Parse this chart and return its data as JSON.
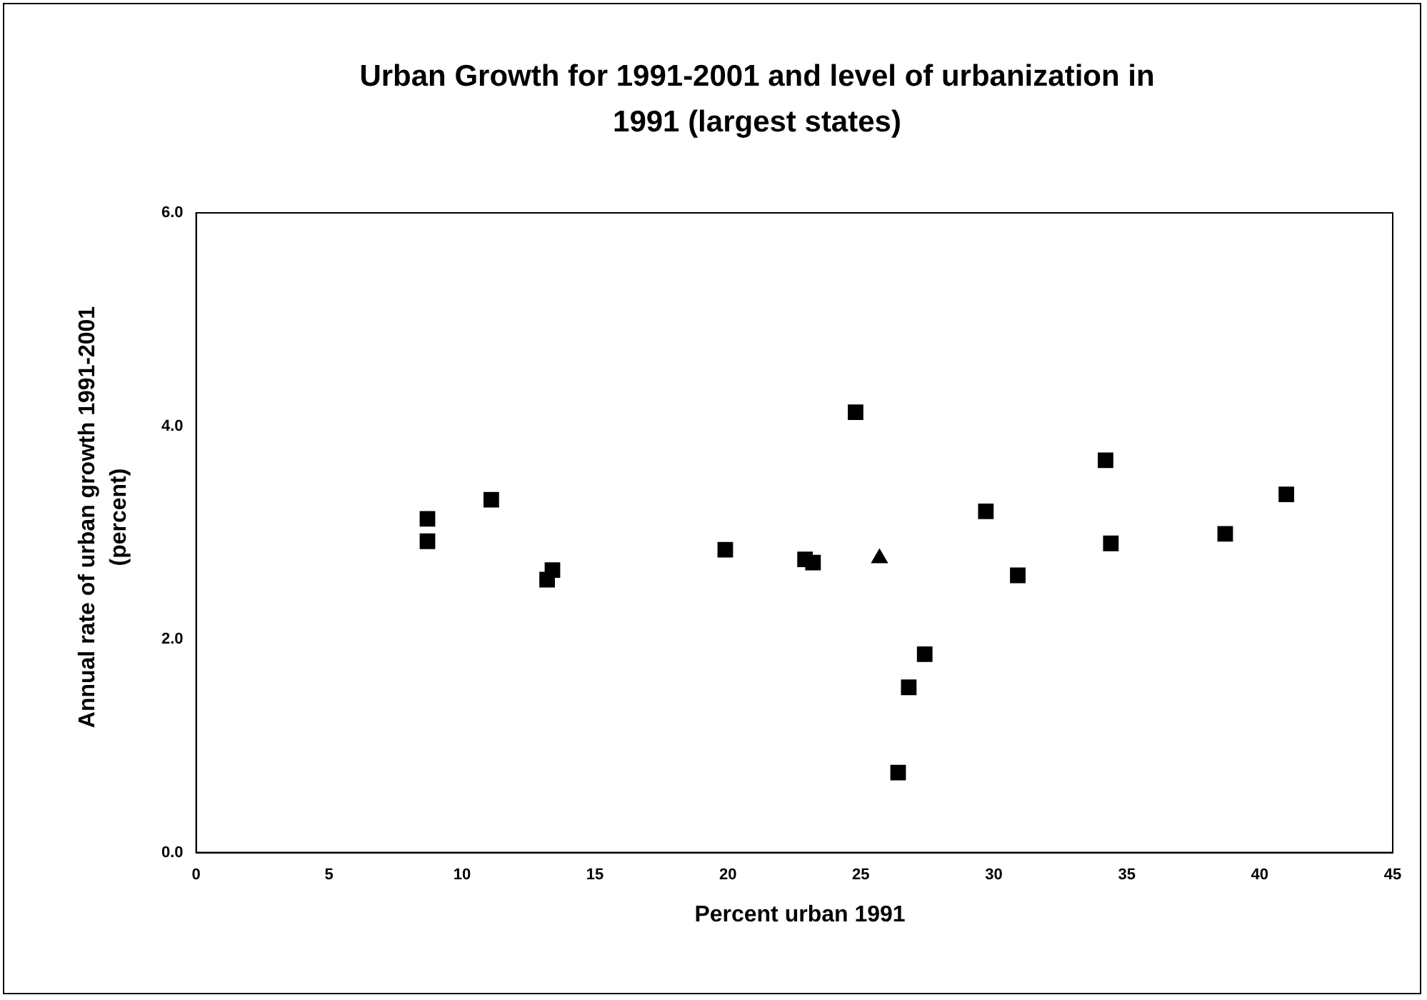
{
  "chart_data": {
    "type": "scatter",
    "title": "Urban Growth for 1991-2001 and level of urbanization in 1991 (largest states)",
    "xlabel": "Percent urban 1991",
    "ylabel": "Annual rate of urban growth 1991-2001 (percent)",
    "xlim": [
      0,
      45
    ],
    "xticks": [
      0,
      5,
      10,
      15,
      20,
      25,
      30,
      35,
      40,
      45
    ],
    "ylim": [
      0,
      6
    ],
    "yticks": [
      {
        "value": 0,
        "label": "0.0"
      },
      {
        "value": 2,
        "label": "2.0"
      },
      {
        "value": 4,
        "label": "4.0"
      },
      {
        "value": 6,
        "label": "6.0"
      }
    ],
    "grid": false,
    "legend": false,
    "marker": "square",
    "series": [
      {
        "color": "#000000",
        "x": [
          8.7,
          8.7,
          11.1,
          13.2,
          13.4,
          19.9,
          22.9,
          23.2,
          24.8,
          26.4,
          26.8,
          27.4,
          29.7,
          30.9,
          34.2,
          34.4,
          38.7,
          41.0
        ],
        "values": [
          3.13,
          2.92,
          3.31,
          2.56,
          2.65,
          2.84,
          2.75,
          2.72,
          4.13,
          0.75,
          1.55,
          1.86,
          3.2,
          2.6,
          3.68,
          2.9,
          2.99,
          3.36
        ]
      },
      {
        "color": "#000000",
        "marker": "triangle",
        "x": [
          25.7
        ],
        "values": [
          2.76
        ]
      }
    ]
  }
}
